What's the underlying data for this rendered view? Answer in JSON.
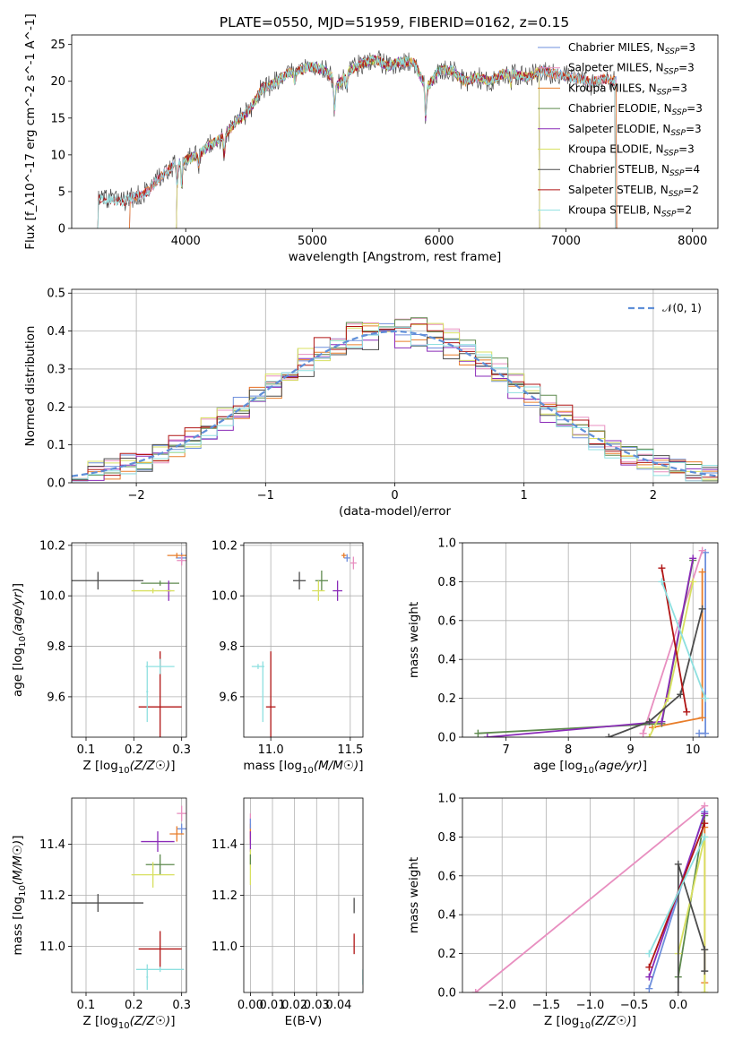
{
  "title": "PLATE=0550, MJD=51959, FIBERID=0162, z=0.15",
  "colors": {
    "Chabrier MILES": "#6e8fdc",
    "Salpeter MILES": "#e88fc0",
    "Kroupa MILES": "#e87d2a",
    "Chabrier ELODIE": "#5e8a4e",
    "Salpeter ELODIE": "#8a2bb8",
    "Kroupa ELODIE": "#d8e060",
    "Chabrier STELIB": "#4d4d4d",
    "Salpeter STELIB": "#b01515",
    "Kroupa STELIB": "#8ee0e0",
    "normal": "#5f8fd8"
  },
  "chart_data": [
    {
      "id": "spectrum",
      "type": "line",
      "xlabel": "wavelength [Angstrom, rest frame]",
      "ylabel": "Flux [f_λ10^-17 erg cm^-2 s^-1 A^-1]",
      "xlim": [
        3100,
        8200
      ],
      "ylim": [
        0,
        26.3
      ],
      "xticks": [
        4000,
        5000,
        6000,
        7000,
        8000
      ],
      "yticks": [
        0,
        5,
        10,
        15,
        20,
        25
      ],
      "legend_position": "top-right",
      "legend": [
        {
          "pre": "Chabrier MILES, N",
          "sub": "SSP",
          "post": "=3"
        },
        {
          "pre": "Salpeter MILES, N",
          "sub": "SSP",
          "post": "=3"
        },
        {
          "pre": "Kroupa MILES, N",
          "sub": "SSP",
          "post": "=3"
        },
        {
          "pre": "Chabrier ELODIE, N",
          "sub": "SSP",
          "post": "=3"
        },
        {
          "pre": "Salpeter ELODIE, N",
          "sub": "SSP",
          "post": "=3"
        },
        {
          "pre": "Kroupa ELODIE, N",
          "sub": "SSP",
          "post": "=3"
        },
        {
          "pre": "Chabrier STELIB, N",
          "sub": "SSP",
          "post": "=4"
        },
        {
          "pre": "Salpeter STELIB, N",
          "sub": "SSP",
          "post": "=2"
        },
        {
          "pre": "Kroupa STELIB, N",
          "sub": "SSP",
          "post": "=2"
        }
      ],
      "data_range": [
        3300,
        7400
      ],
      "model_ranges": [
        [
          3550,
          7410
        ],
        [
          3550,
          7410
        ],
        [
          3550,
          7410
        ],
        [
          3920,
          6800
        ],
        [
          3920,
          6800
        ],
        [
          3920,
          6800
        ],
        [
          3300,
          7400
        ],
        [
          3300,
          7400
        ],
        [
          3300,
          7400
        ]
      ],
      "continuum": [
        [
          3300,
          4.2
        ],
        [
          3500,
          3.6
        ],
        [
          3700,
          5.0
        ],
        [
          3800,
          7.0
        ],
        [
          3900,
          8.5
        ],
        [
          4000,
          9.3
        ],
        [
          4100,
          10.0
        ],
        [
          4200,
          11.5
        ],
        [
          4300,
          12.5
        ],
        [
          4400,
          14.5
        ],
        [
          4500,
          16.0
        ],
        [
          4600,
          19.0
        ],
        [
          4700,
          19.8
        ],
        [
          4800,
          21.0
        ],
        [
          4900,
          21.5
        ],
        [
          5000,
          22.0
        ],
        [
          5100,
          21.5
        ],
        [
          5200,
          19.5
        ],
        [
          5300,
          21.5
        ],
        [
          5400,
          22.5
        ],
        [
          5500,
          23.0
        ],
        [
          5600,
          22.0
        ],
        [
          5700,
          22.7
        ],
        [
          5800,
          22.5
        ],
        [
          5900,
          19.0
        ],
        [
          6000,
          21.5
        ],
        [
          6100,
          21.5
        ],
        [
          6200,
          20.0
        ],
        [
          6300,
          20.5
        ],
        [
          6400,
          20.0
        ],
        [
          6500,
          21.0
        ],
        [
          6600,
          21.0
        ],
        [
          6700,
          20.5
        ],
        [
          6800,
          21.5
        ],
        [
          6900,
          21.0
        ],
        [
          7000,
          20.7
        ],
        [
          7100,
          20.3
        ],
        [
          7200,
          20.0
        ],
        [
          7300,
          20.3
        ],
        [
          7400,
          20.0
        ]
      ]
    },
    {
      "id": "residuals",
      "type": "step",
      "xlabel": "(data-model)/error",
      "ylabel": "Normed distribution",
      "xlim": [
        -2.5,
        2.5
      ],
      "ylim": [
        0,
        0.51
      ],
      "xticks": [
        -2,
        -1,
        0,
        1,
        2
      ],
      "xticklabels": [
        "−2",
        "−1",
        "0",
        "1",
        "2"
      ],
      "yticks": [
        0,
        0.1,
        0.2,
        0.3,
        0.4,
        0.5
      ],
      "yticklabels": [
        "0.0",
        "0.1",
        "0.2",
        "0.3",
        "0.4",
        "0.5"
      ],
      "legend_position": "top-right",
      "legend_label": "𝒩(0, 1)",
      "bins": 40,
      "amplitudes": [
        1.0,
        1.04,
        0.98,
        1.06,
        0.96,
        1.03,
        0.97,
        1.05,
        0.99
      ],
      "normal": {
        "mean": 0,
        "sigma": 1
      }
    },
    {
      "id": "age-Z",
      "type": "scatter",
      "xlabel": "Z [log10(Z/Z☉)]",
      "ylabel": "age  [log10(age/yr)]",
      "xlim": [
        0.07,
        0.31
      ],
      "ylim": [
        9.44,
        10.21
      ],
      "xticks": [
        0.1,
        0.2,
        0.3
      ],
      "xticklabels": [
        "0.1",
        "0.2",
        "0.3"
      ],
      "yticks": [
        9.6,
        9.8,
        10.0,
        10.2
      ],
      "yticklabels": [
        "9.6",
        "9.8",
        "10.0",
        "10.2"
      ],
      "points": [
        {
          "x": 0.3,
          "y": 10.15,
          "xerr": 0.012,
          "yerr": 0.02,
          "c": 0
        },
        {
          "x": 0.3,
          "y": 10.14,
          "xerr": 0.01,
          "yerr": 0.02,
          "c": 1
        },
        {
          "x": 0.29,
          "y": 10.16,
          "xerr": 0.02,
          "yerr": 0.01,
          "c": 2
        },
        {
          "x": 0.255,
          "y": 10.05,
          "xerr": 0.04,
          "yerr": 0.01,
          "c": 3
        },
        {
          "x": 0.273,
          "y": 10.02,
          "xerr": 0.005,
          "yerr": 0.04,
          "c": 4
        },
        {
          "x": 0.24,
          "y": 10.02,
          "xerr": 0.045,
          "yerr": 0.01,
          "c": 5
        },
        {
          "x": 0.125,
          "y": 10.06,
          "xerr": 0.095,
          "yerr": 0.035,
          "c": 6
        },
        {
          "x": 0.255,
          "y": 9.56,
          "xerr": 0.045,
          "yerr": 0.22,
          "c": 7
        },
        {
          "x": 0.255,
          "y": 9.72,
          "xerr": 0.03,
          "yerr": 0.03,
          "c": 8
        },
        {
          "x": 0.228,
          "y": 9.62,
          "xerr": 0.002,
          "yerr": 0.12,
          "c": 8
        }
      ]
    },
    {
      "id": "age-mass",
      "type": "scatter",
      "xlabel": "mass [log10(M/M☉)]",
      "ylabel": "",
      "xlim": [
        10.83,
        11.58
      ],
      "ylim": [
        9.44,
        10.21
      ],
      "xticks": [
        11.0,
        11.5
      ],
      "xticklabels": [
        "11.0",
        "11.5"
      ],
      "yticks": [
        9.6,
        9.8,
        10.0,
        10.2
      ],
      "yticklabels": [
        "9.6",
        "9.8",
        "10.0",
        "10.2"
      ],
      "points": [
        {
          "x": 11.48,
          "y": 10.15,
          "xerr": 0.02,
          "yerr": 0.015,
          "c": 0
        },
        {
          "x": 11.52,
          "y": 10.13,
          "xerr": 0.02,
          "yerr": 0.025,
          "c": 1
        },
        {
          "x": 11.46,
          "y": 10.16,
          "xerr": 0.015,
          "yerr": 0.01,
          "c": 2
        },
        {
          "x": 11.32,
          "y": 10.06,
          "xerr": 0.04,
          "yerr": 0.04,
          "c": 3
        },
        {
          "x": 11.42,
          "y": 10.02,
          "xerr": 0.03,
          "yerr": 0.04,
          "c": 4
        },
        {
          "x": 11.3,
          "y": 10.02,
          "xerr": 0.04,
          "yerr": 0.04,
          "c": 5
        },
        {
          "x": 11.18,
          "y": 10.06,
          "xerr": 0.04,
          "yerr": 0.035,
          "c": 6
        },
        {
          "x": 11.0,
          "y": 9.56,
          "xerr": 0.03,
          "yerr": 0.22,
          "c": 7
        },
        {
          "x": 10.92,
          "y": 9.72,
          "xerr": 0.04,
          "yerr": 0.01,
          "c": 8
        },
        {
          "x": 10.95,
          "y": 9.62,
          "xerr": 0.002,
          "yerr": 0.12,
          "c": 8
        }
      ]
    },
    {
      "id": "mw-age",
      "type": "line",
      "xlabel": "age  [log10(age/yr)]",
      "ylabel": "mass weight",
      "xlim": [
        6.3,
        10.4
      ],
      "ylim": [
        0,
        1
      ],
      "xticks": [
        7,
        8,
        9,
        10
      ],
      "xticklabels": [
        "7",
        "8",
        "9",
        "10"
      ],
      "yticks": [
        0,
        0.2,
        0.4,
        0.6,
        0.8,
        1.0
      ],
      "yticklabels": [
        "0.0",
        "0.2",
        "0.4",
        "0.6",
        "0.8",
        "1.0"
      ],
      "series": [
        {
          "c": 0,
          "x": [
            10.2,
            10.2,
            10.1
          ],
          "y": [
            0.95,
            0.02,
            0.02
          ]
        },
        {
          "c": 1,
          "x": [
            10.15,
            9.2,
            9.2
          ],
          "y": [
            0.96,
            0.02,
            0.02
          ]
        },
        {
          "c": 2,
          "x": [
            10.15,
            10.15,
            9.35
          ],
          "y": [
            0.85,
            0.1,
            0.05
          ]
        },
        {
          "c": 3,
          "x": [
            6.55,
            9.5,
            10.0
          ],
          "y": [
            0.02,
            0.07,
            0.91
          ]
        },
        {
          "c": 4,
          "x": [
            6.7,
            9.5,
            10.0
          ],
          "y": [
            0.0,
            0.08,
            0.92
          ]
        },
        {
          "c": 5,
          "x": [
            9.3,
            9.6,
            10.0
          ],
          "y": [
            0.0,
            0.2,
            0.8
          ]
        },
        {
          "c": 6,
          "x": [
            8.65,
            9.3,
            9.8,
            10.15
          ],
          "y": [
            0.0,
            0.08,
            0.22,
            0.66
          ]
        },
        {
          "c": 7,
          "x": [
            9.5,
            9.9
          ],
          "y": [
            0.87,
            0.13
          ]
        },
        {
          "c": 8,
          "x": [
            9.5,
            10.2
          ],
          "y": [
            0.8,
            0.2
          ]
        }
      ]
    },
    {
      "id": "mass-Z",
      "type": "scatter",
      "xlabel": "Z [log10(Z/Z☉)]",
      "ylabel": "mass [log10(M/M☉)]",
      "xlim": [
        0.07,
        0.31
      ],
      "ylim": [
        10.82,
        11.58
      ],
      "xticks": [
        0.1,
        0.2,
        0.3
      ],
      "xticklabels": [
        "0.1",
        "0.2",
        "0.3"
      ],
      "yticks": [
        11.0,
        11.2,
        11.4
      ],
      "yticklabels": [
        "11.0",
        "11.2",
        "11.4"
      ],
      "points": [
        {
          "x": 0.3,
          "y": 11.46,
          "xerr": 0.01,
          "yerr": 0.02,
          "c": 0
        },
        {
          "x": 0.3,
          "y": 11.52,
          "xerr": 0.01,
          "yerr": 0.03,
          "c": 1
        },
        {
          "x": 0.29,
          "y": 11.44,
          "xerr": 0.015,
          "yerr": 0.03,
          "c": 2
        },
        {
          "x": 0.255,
          "y": 11.32,
          "xerr": 0.03,
          "yerr": 0.04,
          "c": 3
        },
        {
          "x": 0.25,
          "y": 11.41,
          "xerr": 0.035,
          "yerr": 0.04,
          "c": 4
        },
        {
          "x": 0.24,
          "y": 11.28,
          "xerr": 0.045,
          "yerr": 0.05,
          "c": 5
        },
        {
          "x": 0.125,
          "y": 11.17,
          "xerr": 0.095,
          "yerr": 0.035,
          "c": 6
        },
        {
          "x": 0.255,
          "y": 10.99,
          "xerr": 0.045,
          "yerr": 0.07,
          "c": 7
        },
        {
          "x": 0.255,
          "y": 10.91,
          "xerr": 0.05,
          "yerr": 0.01,
          "c": 8
        },
        {
          "x": 0.228,
          "y": 10.88,
          "xerr": 0.002,
          "yerr": 0.05,
          "c": 8
        }
      ]
    },
    {
      "id": "mass-ebv",
      "type": "scatter",
      "xlabel": "E(B-V)",
      "ylabel": "",
      "xlim": [
        -0.003,
        0.051
      ],
      "ylim": [
        10.82,
        11.58
      ],
      "xticks": [
        0,
        0.01,
        0.02,
        0.03,
        0.04
      ],
      "xticklabels": [
        "0.00",
        "0.01",
        "0.02",
        "0.03",
        "0.04"
      ],
      "yticks": [
        11.0,
        11.2,
        11.4
      ],
      "yticklabels": [
        "11.0",
        "11.2",
        "11.4"
      ],
      "points": [
        {
          "x": 0.0,
          "y": 11.47,
          "xerr": 0,
          "yerr": 0.05,
          "c": 1
        },
        {
          "x": 0.0,
          "y": 11.44,
          "xerr": 0,
          "yerr": 0.04,
          "c": 2
        },
        {
          "x": 0.0,
          "y": 11.41,
          "xerr": 0,
          "yerr": 0.04,
          "c": 4
        },
        {
          "x": 0.0,
          "y": 11.31,
          "xerr": 0,
          "yerr": 0.07,
          "c": 5
        },
        {
          "x": 0.0,
          "y": 11.48,
          "xerr": 0,
          "yerr": 0.02,
          "c": 0
        },
        {
          "x": 0.0,
          "y": 11.34,
          "xerr": 0,
          "yerr": 0.02,
          "c": 3
        },
        {
          "x": 0.047,
          "y": 11.16,
          "xerr": 0,
          "yerr": 0.03,
          "c": 6
        },
        {
          "x": 0.047,
          "y": 11.01,
          "xerr": 0,
          "yerr": 0.04,
          "c": 7
        },
        {
          "x": 0.051,
          "y": 10.88,
          "xerr": 0,
          "yerr": 0.03,
          "c": 8
        }
      ]
    },
    {
      "id": "mw-Z",
      "type": "line",
      "xlabel": "Z [log10(Z/Z☉)]",
      "ylabel": "mass weight",
      "xlim": [
        -2.45,
        0.45
      ],
      "ylim": [
        0,
        1
      ],
      "xticks": [
        -2.0,
        -1.5,
        -1.0,
        -0.5,
        0.0
      ],
      "xticklabels": [
        "−2.0",
        "−1.5",
        "−1.0",
        "−0.5",
        "0.0"
      ],
      "yticks": [
        0,
        0.2,
        0.4,
        0.6,
        0.8,
        1.0
      ],
      "yticklabels": [
        "0.0",
        "0.2",
        "0.4",
        "0.6",
        "0.8",
        "1.0"
      ],
      "series": [
        {
          "c": 1,
          "x": [
            -2.3,
            0.3
          ],
          "y": [
            0.0,
            0.96
          ]
        },
        {
          "c": 0,
          "x": [
            -0.33,
            0.3
          ],
          "y": [
            0.02,
            0.93
          ]
        },
        {
          "c": 2,
          "x": [
            0.3,
            0.3
          ],
          "y": [
            0.85,
            0.05
          ]
        },
        {
          "c": 3,
          "x": [
            0.0,
            0.3
          ],
          "y": [
            0.08,
            0.91
          ]
        },
        {
          "c": 4,
          "x": [
            -0.33,
            0.3
          ],
          "y": [
            0.08,
            0.92
          ]
        },
        {
          "c": 5,
          "x": [
            0.0,
            0.3,
            0.3
          ],
          "y": [
            0.2,
            0.8,
            0.0
          ]
        },
        {
          "c": 6,
          "x": [
            0.0,
            0.0,
            0.3,
            0.3
          ],
          "y": [
            0.0,
            0.66,
            0.22,
            0.11
          ]
        },
        {
          "c": 7,
          "x": [
            -0.33,
            0.3
          ],
          "y": [
            0.13,
            0.87
          ]
        },
        {
          "c": 8,
          "x": [
            -0.33,
            0.3
          ],
          "y": [
            0.2,
            0.8
          ]
        }
      ]
    }
  ]
}
